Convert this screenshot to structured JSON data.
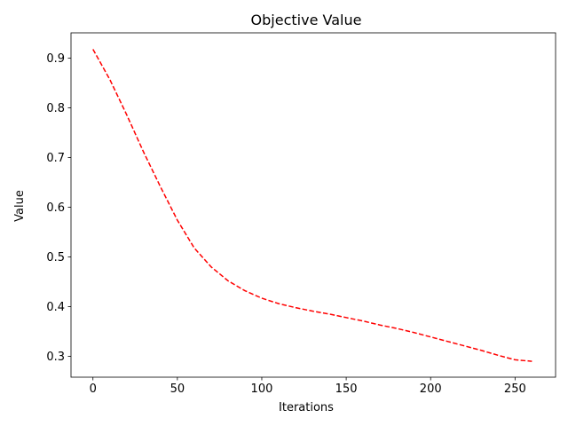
{
  "chart_data": {
    "type": "line",
    "title": "Objective Value",
    "xlabel": "Iterations",
    "ylabel": "Value",
    "xlim": [
      -13,
      274
    ],
    "ylim": [
      0.258,
      0.951
    ],
    "xticks": [
      0,
      50,
      100,
      150,
      200,
      250
    ],
    "yticks": [
      0.3,
      0.4,
      0.5,
      0.6,
      0.7,
      0.8,
      0.9
    ],
    "xtick_labels": [
      "0",
      "50",
      "100",
      "150",
      "200",
      "250"
    ],
    "ytick_labels": [
      "0.3",
      "0.4",
      "0.5",
      "0.6",
      "0.7",
      "0.8",
      "0.9"
    ],
    "grid": false,
    "legend": "none",
    "series": [
      {
        "color": "#ff0000",
        "line_style": "dashed",
        "x": [
          0,
          10,
          20,
          30,
          40,
          50,
          60,
          70,
          80,
          90,
          100,
          110,
          120,
          130,
          140,
          150,
          160,
          170,
          180,
          190,
          200,
          210,
          220,
          230,
          240,
          250,
          260
        ],
        "y": [
          0.918,
          0.857,
          0.786,
          0.711,
          0.641,
          0.574,
          0.518,
          0.48,
          0.452,
          0.432,
          0.417,
          0.406,
          0.398,
          0.391,
          0.385,
          0.378,
          0.371,
          0.363,
          0.356,
          0.348,
          0.339,
          0.33,
          0.321,
          0.312,
          0.302,
          0.293,
          0.29
        ]
      }
    ]
  }
}
